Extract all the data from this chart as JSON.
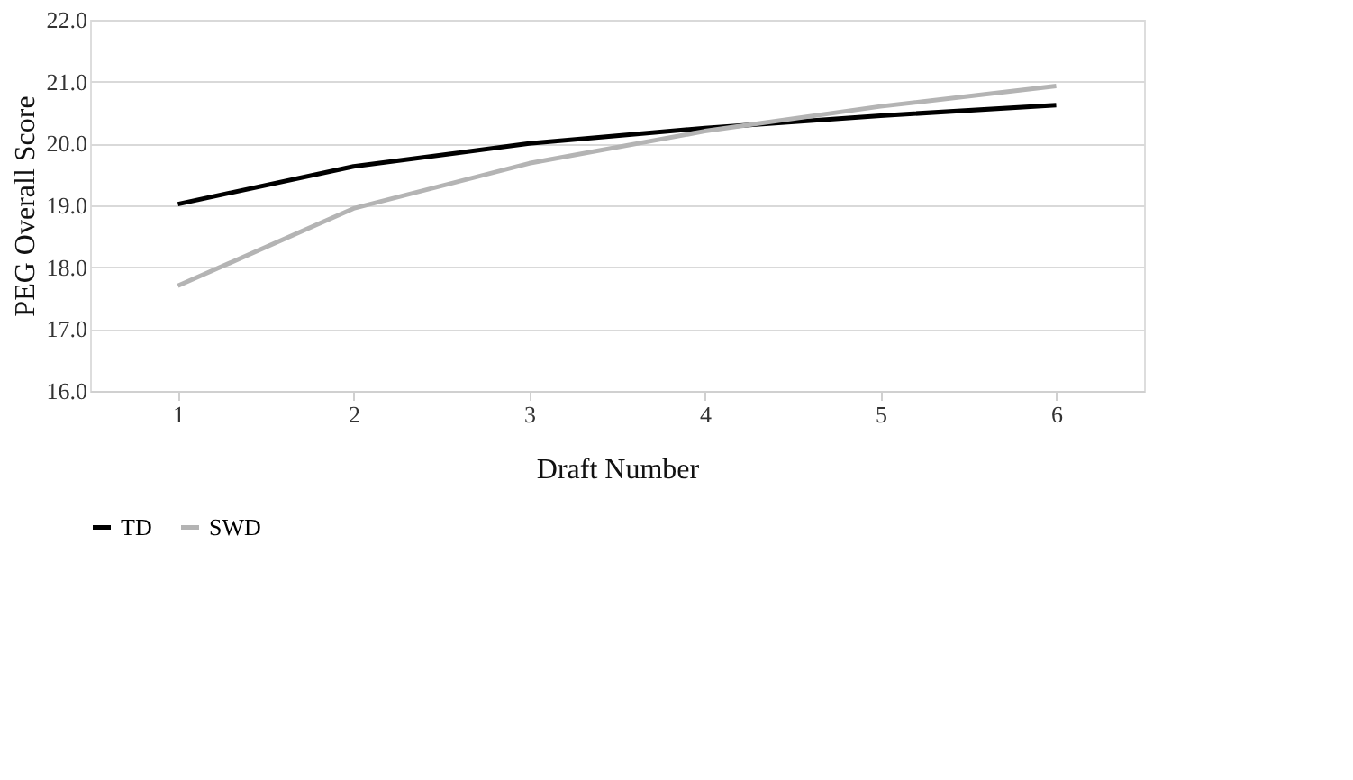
{
  "chart_data": {
    "type": "line",
    "xlabel": "Draft Number",
    "ylabel": "PEG Overall Score",
    "categories": [
      "1",
      "2",
      "3",
      "4",
      "5",
      "6"
    ],
    "series": [
      {
        "name": "TD",
        "color": "#000000",
        "values": [
          19.02,
          19.63,
          20.0,
          20.25,
          20.45,
          20.62
        ]
      },
      {
        "name": "SWD",
        "color": "#b4b4b4",
        "values": [
          17.7,
          18.95,
          19.68,
          20.2,
          20.6,
          20.93
        ]
      }
    ],
    "ylim": [
      16,
      22
    ],
    "yticks": [
      {
        "value": 16,
        "label": "16.0"
      },
      {
        "value": 17,
        "label": "17.0"
      },
      {
        "value": 18,
        "label": "18.0"
      },
      {
        "value": 19,
        "label": "19.0"
      },
      {
        "value": 20,
        "label": "20.0"
      },
      {
        "value": 21,
        "label": "21.0"
      },
      {
        "value": 22,
        "label": "22.0"
      }
    ],
    "grid": "y",
    "legend": "bottom",
    "marker": "none",
    "line_style": "solid"
  }
}
